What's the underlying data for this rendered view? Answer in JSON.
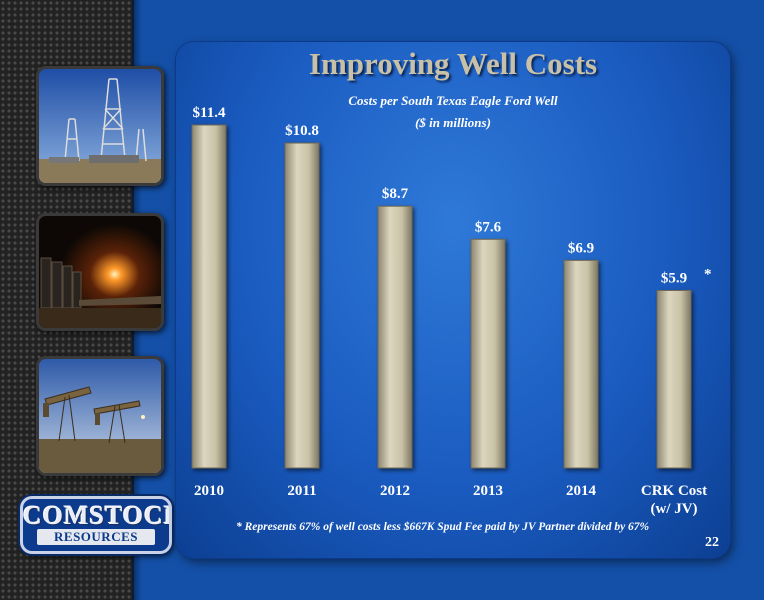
{
  "slide": {
    "title": "Improving Well Costs",
    "page_number": "22",
    "footnote": "* Represents 67% of well costs less $667K Spud Fee paid by JV Partner divided by 67%",
    "logo": {
      "top": "COMSTOCK",
      "bottom": "RESOURCES"
    }
  },
  "photos": [
    "drilling-rig-photo",
    "gas-flare-photo",
    "pumpjacks-photo"
  ],
  "colors": {
    "background": "#1450a8",
    "bar": "#c9c2a6",
    "title": "#c8c1a8",
    "text": "#ffffff"
  },
  "chart_data": {
    "type": "bar",
    "title": "Costs per South Texas Eagle Ford Well",
    "subtitle": "($ in millions)",
    "categories": [
      "2010",
      "2011",
      "2012",
      "2013",
      "2014",
      "CRK Cost\n(w/ JV)"
    ],
    "values": [
      11.4,
      10.8,
      8.7,
      7.6,
      6.9,
      5.9
    ],
    "labels": [
      "$11.4",
      "$10.8",
      "$8.7",
      "$7.6",
      "$6.9",
      "$5.9"
    ],
    "annotations": [
      {
        "category_index": 5,
        "text": "*"
      }
    ],
    "xlabel": "",
    "ylabel": "",
    "ylim": [
      0,
      11.4
    ],
    "grid": false,
    "legend": "none"
  }
}
